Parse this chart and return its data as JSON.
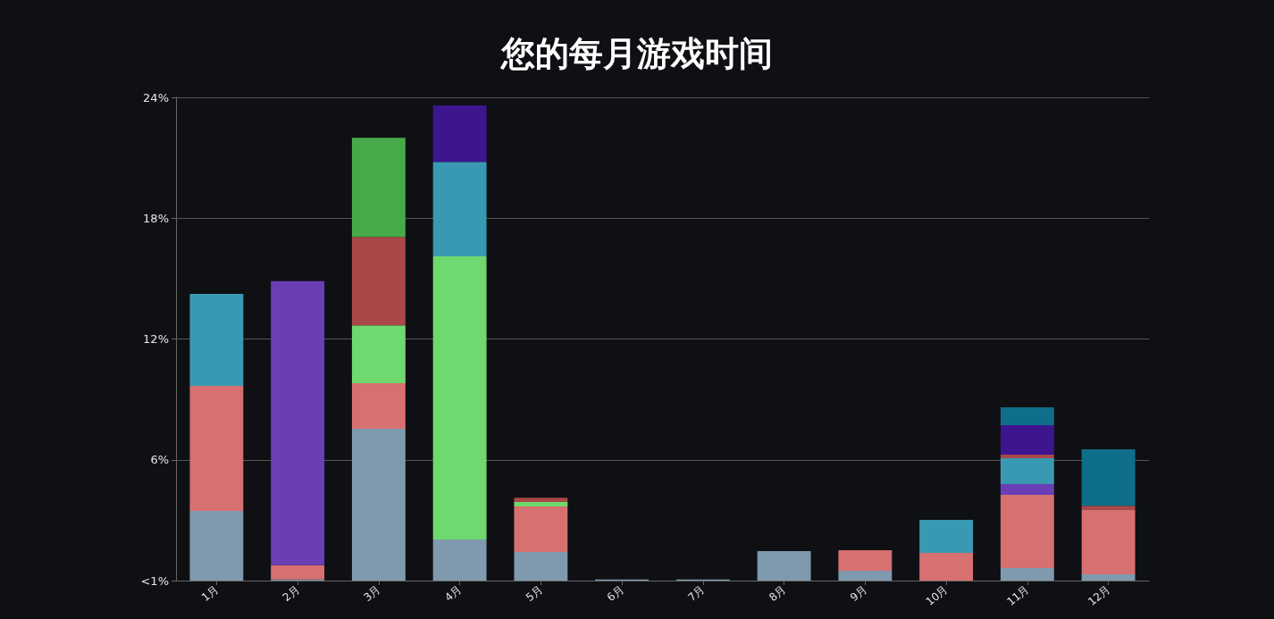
{
  "chart_data": {
    "type": "bar",
    "title": "您的每月游戏时间",
    "stacked": true,
    "categories": [
      "1月",
      "2月",
      "3月",
      "4月",
      "5月",
      "6月",
      "7月",
      "8月",
      "9月",
      "10月",
      "11月",
      "12月"
    ],
    "series": [
      {
        "color": "#7f9aae",
        "values": [
          3.46,
          0.05,
          7.54,
          2.04,
          1.42,
          0.05,
          0.05,
          1.46,
          0.49,
          null,
          0.62,
          0.31
        ]
      },
      {
        "color": "#d77070",
        "values": [
          6.21,
          0.71,
          2.26,
          null,
          2.26,
          null,
          null,
          null,
          1.02,
          1.38,
          3.64,
          3.19
        ]
      },
      {
        "color": "#6a3fb5",
        "values": [
          null,
          14.11,
          null,
          null,
          null,
          null,
          null,
          null,
          null,
          null,
          0.53,
          null
        ]
      },
      {
        "color": "#6fd86f",
        "values": [
          null,
          null,
          2.88,
          14.06,
          0.22,
          null,
          null,
          null,
          null,
          null,
          null,
          null
        ]
      },
      {
        "color": "#3a99b2",
        "values": [
          4.57,
          null,
          null,
          4.7,
          null,
          null,
          null,
          null,
          null,
          1.64,
          1.29,
          null
        ]
      },
      {
        "color": "#a94848",
        "values": [
          null,
          null,
          4.39,
          null,
          0.22,
          null,
          null,
          null,
          null,
          null,
          0.18,
          0.22
        ]
      },
      {
        "color": "#46aa48",
        "values": [
          null,
          null,
          4.92,
          null,
          null,
          null,
          null,
          null,
          null,
          null,
          null,
          null
        ]
      },
      {
        "color": "#3d168f",
        "values": [
          null,
          null,
          null,
          2.8,
          null,
          null,
          null,
          null,
          null,
          null,
          1.46,
          null
        ]
      },
      {
        "color": "#0f6e8a",
        "values": [
          null,
          null,
          null,
          null,
          null,
          null,
          null,
          null,
          null,
          null,
          0.89,
          2.8
        ]
      }
    ],
    "ylim": [
      0,
      24
    ],
    "yticks": [
      {
        "value": 0,
        "label": "<1%"
      },
      {
        "value": 6,
        "label": "6%"
      },
      {
        "value": 12,
        "label": "12%"
      },
      {
        "value": 18,
        "label": "18%"
      },
      {
        "value": 24,
        "label": "24%"
      }
    ],
    "grid": "y"
  }
}
